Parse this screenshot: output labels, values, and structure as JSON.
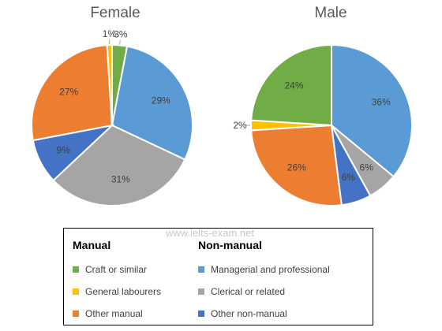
{
  "watermark": "www.ielts-exam.net",
  "chart_data": [
    {
      "type": "pie",
      "title": "Female",
      "series": [
        {
          "name": "Craft or similar",
          "value": 3,
          "label": "3%",
          "color": "#70ad47"
        },
        {
          "name": "Managerial and professional",
          "value": 29,
          "label": "29%",
          "color": "#5b9bd5"
        },
        {
          "name": "Clerical or related",
          "value": 31,
          "label": "31%",
          "color": "#a5a5a5"
        },
        {
          "name": "Other non-manual",
          "value": 9,
          "label": "9%",
          "color": "#4472c4"
        },
        {
          "name": "Other manual",
          "value": 27,
          "label": "27%",
          "color": "#ed7d31"
        },
        {
          "name": "General labourers",
          "value": 1,
          "label": "1%",
          "color": "#ffc000"
        }
      ]
    },
    {
      "type": "pie",
      "title": "Male",
      "series": [
        {
          "name": "Managerial and professional",
          "value": 36,
          "label": "36%",
          "color": "#5b9bd5"
        },
        {
          "name": "Clerical or related",
          "value": 6,
          "label": "6%",
          "color": "#a5a5a5"
        },
        {
          "name": "Other non-manual",
          "value": 6,
          "label": "6%",
          "color": "#4472c4"
        },
        {
          "name": "Other manual",
          "value": 26,
          "label": "26%",
          "color": "#ed7d31"
        },
        {
          "name": "General labourers",
          "value": 2,
          "label": "2%",
          "color": "#ffc000"
        },
        {
          "name": "Craft or similar",
          "value": 24,
          "label": "24%",
          "color": "#70ad47"
        }
      ]
    }
  ],
  "legend": {
    "manual_header": "Manual",
    "nonmanual_header": "Non-manual",
    "manual_items": [
      {
        "label": "Craft or similar",
        "color": "#70ad47"
      },
      {
        "label": "General labourers",
        "color": "#ffc000"
      },
      {
        "label": "Other manual",
        "color": "#ed7d31"
      }
    ],
    "nonmanual_items": [
      {
        "label": "Managerial and professional",
        "color": "#5b9bd5"
      },
      {
        "label": "Clerical or related",
        "color": "#a5a5a5"
      },
      {
        "label": "Other non-manual",
        "color": "#4472c4"
      }
    ]
  }
}
